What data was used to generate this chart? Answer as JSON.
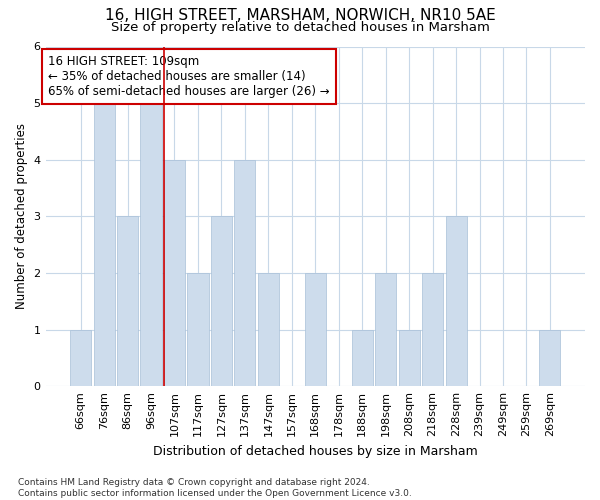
{
  "title": "16, HIGH STREET, MARSHAM, NORWICH, NR10 5AE",
  "subtitle": "Size of property relative to detached houses in Marsham",
  "xlabel": "Distribution of detached houses by size in Marsham",
  "ylabel": "Number of detached properties",
  "categories": [
    "66sqm",
    "76sqm",
    "86sqm",
    "96sqm",
    "107sqm",
    "117sqm",
    "127sqm",
    "137sqm",
    "147sqm",
    "157sqm",
    "168sqm",
    "178sqm",
    "188sqm",
    "198sqm",
    "208sqm",
    "218sqm",
    "228sqm",
    "239sqm",
    "249sqm",
    "259sqm",
    "269sqm"
  ],
  "values": [
    1,
    5,
    3,
    5,
    4,
    2,
    3,
    4,
    2,
    0,
    2,
    0,
    1,
    2,
    1,
    2,
    3,
    0,
    0,
    0,
    1
  ],
  "bar_color": "#cddcec",
  "bar_edgecolor": "#a8c0d8",
  "highlight_index": 4,
  "highlight_line_color": "#cc0000",
  "ylim": [
    0,
    6
  ],
  "yticks": [
    0,
    1,
    2,
    3,
    4,
    5,
    6
  ],
  "annotation_text": "16 HIGH STREET: 109sqm\n← 35% of detached houses are smaller (14)\n65% of semi-detached houses are larger (26) →",
  "annotation_box_edgecolor": "#cc0000",
  "annotation_box_facecolor": "#ffffff",
  "footer_line1": "Contains HM Land Registry data © Crown copyright and database right 2024.",
  "footer_line2": "Contains public sector information licensed under the Open Government Licence v3.0.",
  "title_fontsize": 11,
  "subtitle_fontsize": 9.5,
  "tick_fontsize": 8,
  "ylabel_fontsize": 8.5,
  "xlabel_fontsize": 9,
  "footer_fontsize": 6.5,
  "annotation_fontsize": 8.5,
  "grid_color": "#c8d8e8",
  "background_color": "#ffffff"
}
